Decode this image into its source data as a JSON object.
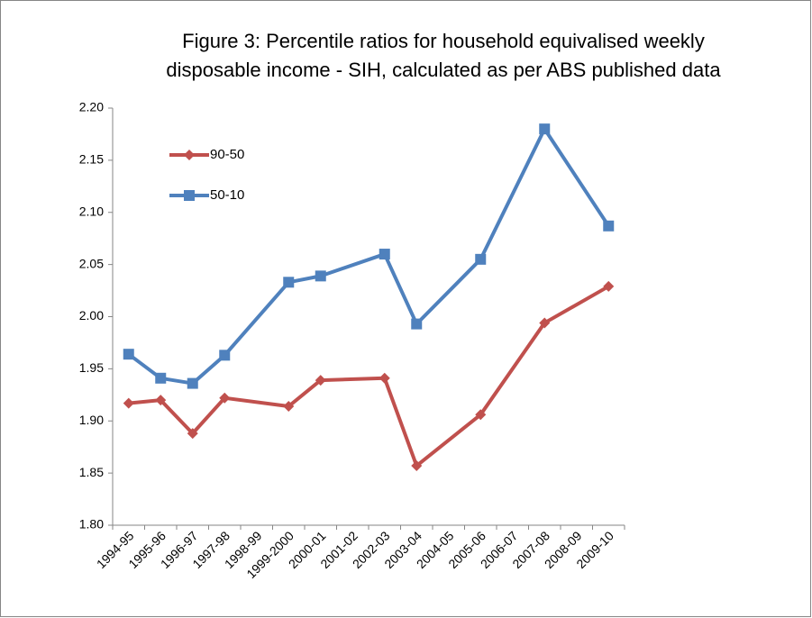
{
  "chart_data": {
    "type": "line",
    "title": [
      "Figure 3: Percentile ratios for household equivalised weekly",
      "disposable income - SIH, calculated as per ABS published data"
    ],
    "categories": [
      "1994-95",
      "1995-96",
      "1996-97",
      "1997-98",
      "1998-99",
      "1999-2000",
      "2000-01",
      "2001-02",
      "2002-03",
      "2003-04",
      "2004-05",
      "2005-06",
      "2006-07",
      "2007-08",
      "2008-09",
      "2009-10"
    ],
    "series": [
      {
        "name": "90-50",
        "color": "#c0504d",
        "marker": "diamond",
        "x": [
          "1994-95",
          "1995-96",
          "1996-97",
          "1997-98",
          "1999-2000",
          "2000-01",
          "2002-03",
          "2003-04",
          "2005-06",
          "2007-08",
          "2009-10"
        ],
        "values": [
          1.917,
          1.92,
          1.888,
          1.922,
          1.914,
          1.939,
          1.941,
          1.857,
          1.906,
          1.994,
          2.029
        ]
      },
      {
        "name": "50-10",
        "color": "#4f81bd",
        "marker": "square",
        "x": [
          "1994-95",
          "1995-96",
          "1996-97",
          "1997-98",
          "1999-2000",
          "2000-01",
          "2002-03",
          "2003-04",
          "2005-06",
          "2007-08",
          "2009-10"
        ],
        "values": [
          1.964,
          1.941,
          1.936,
          1.963,
          2.033,
          2.039,
          2.06,
          1.993,
          2.055,
          2.18,
          2.087
        ]
      }
    ],
    "ylim": [
      1.8,
      2.2
    ],
    "yticks": [
      {
        "value": 1.8,
        "label": "1.80"
      },
      {
        "value": 1.85,
        "label": "1.85"
      },
      {
        "value": 1.9,
        "label": "1.90"
      },
      {
        "value": 1.95,
        "label": "1.95"
      },
      {
        "value": 2.0,
        "label": "2.00"
      },
      {
        "value": 2.05,
        "label": "2.05"
      },
      {
        "value": 2.1,
        "label": "2.10"
      },
      {
        "value": 2.15,
        "label": "2.15"
      },
      {
        "value": 2.2,
        "label": "2.20"
      }
    ],
    "grid": false,
    "legend": "upper left"
  }
}
